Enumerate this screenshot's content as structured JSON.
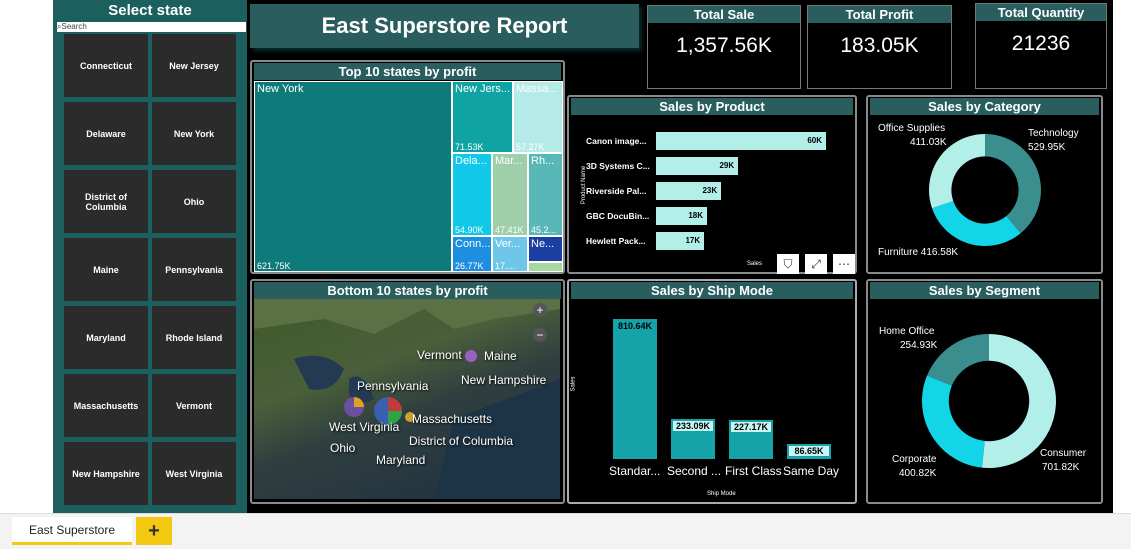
{
  "report_title": "East Superstore Report",
  "slicer": {
    "title": "Select state",
    "search_placeholder": "Search",
    "states": [
      "Connecticut",
      "New Jersey",
      "Delaware",
      "New York",
      "District of Columbia",
      "Ohio",
      "Maine",
      "Pennsylvania",
      "Maryland",
      "Rhode Island",
      "Massachusetts",
      "Vermont",
      "New Hampshire",
      "West Virginia"
    ]
  },
  "kpis": {
    "total_sale": {
      "label": "Total Sale",
      "value": "1,357.56K"
    },
    "total_profit": {
      "label": "Total Profit",
      "value": "183.05K"
    },
    "total_quantity": {
      "label": "Total Quantity",
      "value": "21236"
    }
  },
  "top10": {
    "title": "Top 10 states by profit",
    "cells": [
      {
        "name": "New York",
        "value": "621.75K",
        "color": "#0e7a7a"
      },
      {
        "name": "New Jers...",
        "value": "71.53K",
        "color": "#0fa3a3"
      },
      {
        "name": "Massa...",
        "value": "57.27K",
        "color": "#b4eae8"
      },
      {
        "name": "Dela...",
        "value": "54.90K",
        "color": "#12c8e8"
      },
      {
        "name": "Mar...",
        "value": "47.41K",
        "color": "#9fcfa8"
      },
      {
        "name": "Rh...",
        "value": "45.2...",
        "color": "#5ab7b7"
      },
      {
        "name": "Conn...",
        "value": "26.77K",
        "color": "#1e8fe0"
      },
      {
        "name": "Ver...",
        "value": "17....",
        "color": "#6ec6e8"
      },
      {
        "name": "Ne...",
        "value": "",
        "color": "#1a3fa0"
      },
      {
        "name": "",
        "value": "",
        "color": "#a8d8a0"
      }
    ]
  },
  "sales_by_product": {
    "title": "Sales by Product",
    "ylabel": "Product Name",
    "xlabel": "Sales",
    "items": [
      {
        "name": "Canon image...",
        "value": 60,
        "label": "60K"
      },
      {
        "name": "3D Systems C...",
        "value": 29,
        "label": "29K"
      },
      {
        "name": "Riverside Pal...",
        "value": 23,
        "label": "23K"
      },
      {
        "name": "GBC DocuBin...",
        "value": 18,
        "label": "18K"
      },
      {
        "name": "Hewlett Pack...",
        "value": 17,
        "label": "17K"
      }
    ]
  },
  "sales_by_category": {
    "title": "Sales by Category",
    "slices": [
      {
        "name": "Office Supplies",
        "value": 411.03,
        "label": "411.03K",
        "color": "#b2efe9"
      },
      {
        "name": "Technology",
        "value": 529.95,
        "label": "529.95K",
        "color": "#3a8e8e"
      },
      {
        "name": "Furniture",
        "value": 416.58,
        "label": "416.58K",
        "color": "#12d5e8"
      }
    ],
    "furniture_text": "Furniture 416.58K"
  },
  "bottom10": {
    "title": "Bottom 10 states by profit",
    "labels": [
      "Vermont",
      "Maine",
      "Pennsylvania",
      "New Hampshire",
      "West Virginia",
      "Massachusetts",
      "District of Columbia",
      "Ohio",
      "Maryland"
    ]
  },
  "sales_by_ship_mode": {
    "title": "Sales by Ship Mode",
    "ylabel": "Sales",
    "xlabel": "Ship Mode",
    "categories": [
      "Standar...",
      "Second ...",
      "First Class",
      "Same Day"
    ],
    "values": [
      810.64,
      233.09,
      227.17,
      86.65
    ],
    "labels": [
      "810.64K",
      "233.09K",
      "227.17K",
      "86.65K"
    ]
  },
  "sales_by_segment": {
    "title": "Sales by Segment",
    "slices": [
      {
        "name": "Home Office",
        "value": 254.93,
        "label": "254.93K",
        "color": "#3a8e8e"
      },
      {
        "name": "Consumer",
        "value": 701.82,
        "label": "701.82K",
        "color": "#b2efe9"
      },
      {
        "name": "Corporate",
        "value": 400.82,
        "label": "400.82K",
        "color": "#12d5e8"
      }
    ]
  },
  "icons": {
    "filter": "filter-icon",
    "focus": "focus-mode-icon",
    "more": "more-options-icon",
    "zoom_in": "zoom-in-icon",
    "zoom_out": "zoom-out-icon"
  },
  "tabs": {
    "active": "East Superstore",
    "add": "+"
  }
}
